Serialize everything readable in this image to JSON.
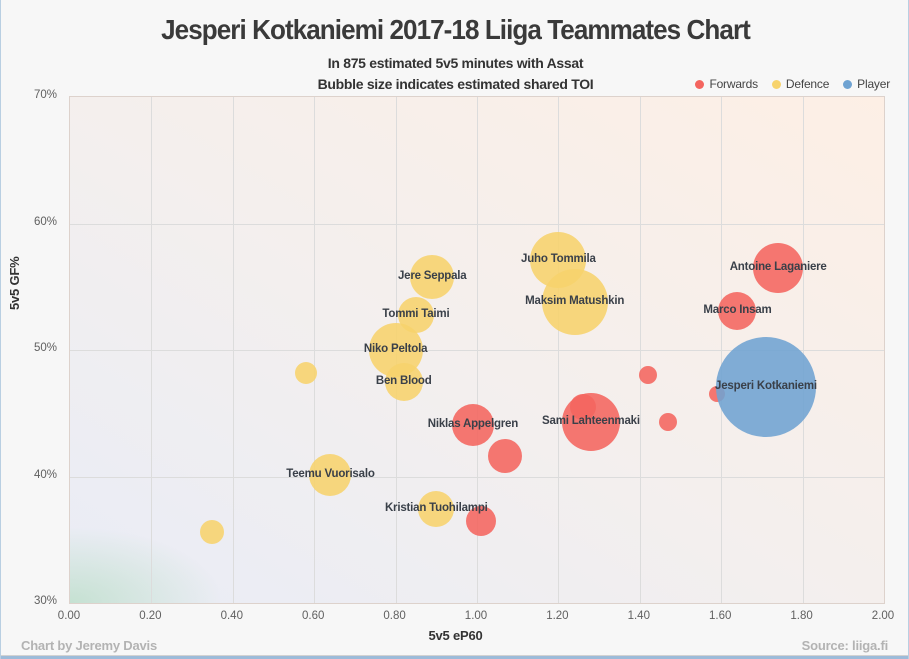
{
  "title": "Jesperi Kotkaniemi 2017-18 Liiga Teammates Chart",
  "subtitle1": "In 875 estimated 5v5 minutes with Assat",
  "subtitle2": "Bubble size indicates estimated shared TOI",
  "legend": [
    {
      "label": "Forwards",
      "color": "#f4655f"
    },
    {
      "label": "Defence",
      "color": "#f7d36c"
    },
    {
      "label": "Player",
      "color": "#6fa3d2"
    }
  ],
  "footer": {
    "left": "Chart by Jeremy Davis",
    "right": "Source: liiga.fi"
  },
  "chart_data": {
    "type": "scatter",
    "title": "Jesperi Kotkaniemi 2017-18 Liiga Teammates Chart",
    "xlabel": "5v5 eP60",
    "ylabel": "5v5 GF%",
    "xlim": [
      0.0,
      2.0
    ],
    "ylim": [
      30,
      70
    ],
    "grid": true,
    "legend_position": "top-right",
    "x_ticks": [
      {
        "v": 0.0,
        "label": "0.00"
      },
      {
        "v": 0.2,
        "label": "0.20"
      },
      {
        "v": 0.4,
        "label": "0.40"
      },
      {
        "v": 0.6,
        "label": "0.60"
      },
      {
        "v": 0.8,
        "label": "0.80"
      },
      {
        "v": 1.0,
        "label": "1.00"
      },
      {
        "v": 1.2,
        "label": "1.20"
      },
      {
        "v": 1.4,
        "label": "1.40"
      },
      {
        "v": 1.6,
        "label": "1.60"
      },
      {
        "v": 1.8,
        "label": "1.80"
      },
      {
        "v": 2.0,
        "label": "2.00"
      }
    ],
    "y_ticks": [
      {
        "v": 30,
        "label": "30%"
      },
      {
        "v": 40,
        "label": "40%"
      },
      {
        "v": 50,
        "label": "50%"
      },
      {
        "v": 60,
        "label": "60%"
      },
      {
        "v": 70,
        "label": "70%"
      }
    ],
    "size_note": "bubble r = estimated shared TOI (pixel radius as shown)",
    "series": [
      {
        "name": "Defence",
        "color": "#f7d36c",
        "points": [
          {
            "name": "Jere Seppala",
            "x": 0.89,
            "y": 55.8,
            "r": 22
          },
          {
            "name": "Juho Tommila",
            "x": 1.2,
            "y": 57.1,
            "r": 28
          },
          {
            "name": "Tommi Taimi",
            "x": 0.85,
            "y": 52.8,
            "r": 18
          },
          {
            "name": "Maksim Matushkin",
            "x": 1.24,
            "y": 53.8,
            "r": 33
          },
          {
            "name": "Niko Peltola",
            "x": 0.8,
            "y": 50.0,
            "r": 27
          },
          {
            "name": "Ben Blood",
            "x": 0.82,
            "y": 47.5,
            "r": 19
          },
          {
            "name": "",
            "x": 0.58,
            "y": 48.2,
            "r": 11
          },
          {
            "name": "Teemu Vuorisalo",
            "x": 0.64,
            "y": 40.1,
            "r": 21
          },
          {
            "name": "Kristian Tuohilampi",
            "x": 0.9,
            "y": 37.4,
            "r": 18
          },
          {
            "name": "",
            "x": 0.35,
            "y": 35.6,
            "r": 12
          }
        ]
      },
      {
        "name": "Forwards",
        "color": "#f4655f",
        "points": [
          {
            "name": "Antoine Laganiere",
            "x": 1.74,
            "y": 56.5,
            "r": 25
          },
          {
            "name": "Marco Insam",
            "x": 1.64,
            "y": 53.1,
            "r": 19
          },
          {
            "name": "Niklas Appelgren",
            "x": 0.99,
            "y": 44.1,
            "r": 21
          },
          {
            "name": "",
            "x": 1.26,
            "y": 45.5,
            "r": 13
          },
          {
            "name": "Sami Lahteenmaki",
            "x": 1.28,
            "y": 44.3,
            "r": 29
          },
          {
            "name": "",
            "x": 1.42,
            "y": 48.0,
            "r": 9
          },
          {
            "name": "",
            "x": 1.47,
            "y": 44.3,
            "r": 9
          },
          {
            "name": "",
            "x": 1.59,
            "y": 46.5,
            "r": 8
          },
          {
            "name": "",
            "x": 1.07,
            "y": 41.6,
            "r": 17
          },
          {
            "name": "",
            "x": 1.01,
            "y": 36.5,
            "r": 15
          }
        ]
      },
      {
        "name": "Player",
        "color": "#6fa3d2",
        "points": [
          {
            "name": "Jesperi Kotkaniemi",
            "x": 1.71,
            "y": 47.1,
            "r": 50
          }
        ]
      }
    ]
  }
}
